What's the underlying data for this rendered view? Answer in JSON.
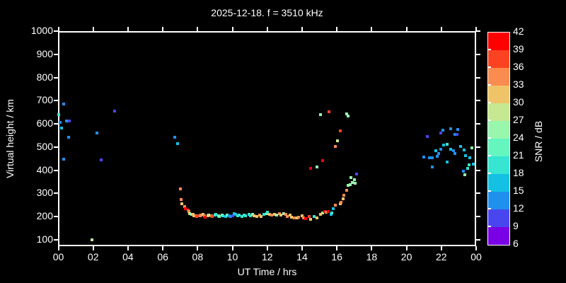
{
  "window": {
    "background": "#000000",
    "foreground": "#ffffff"
  },
  "chart_data": {
    "type": "scatter",
    "title": "2025-12-18. f = 3510 kHz",
    "xlabel": "UT Time / hrs",
    "ylabel": "Virtual height / km",
    "colorbar_label": "SNR / dB",
    "xlim_hours": [
      0,
      24
    ],
    "ylim_km": [
      73,
      1000
    ],
    "grid": false,
    "marker": "square",
    "x_tick_labels": [
      "00",
      "02",
      "04",
      "06",
      "08",
      "10",
      "12",
      "14",
      "16",
      "18",
      "20",
      "22",
      "00"
    ],
    "x_tick_hours": [
      0,
      2,
      4,
      6,
      8,
      10,
      12,
      14,
      16,
      18,
      20,
      22,
      24
    ],
    "y_tick_labels": [
      "1000",
      "900",
      "800",
      "700",
      "600",
      "500",
      "400",
      "300",
      "200",
      "100"
    ],
    "y_ticks_km": [
      1000,
      900,
      800,
      700,
      600,
      500,
      400,
      300,
      200,
      100
    ],
    "colorbar": {
      "min_db": 6,
      "max_db": 42,
      "step_db": 3,
      "tick_labels_top_to_bottom": [
        "42",
        "39",
        "36",
        "33",
        "30",
        "27",
        "24",
        "21",
        "18",
        "15",
        "12",
        "9",
        "6"
      ],
      "band_colors_bottom_to_top": [
        "#7A00E5",
        "#4A46EF",
        "#2090EF",
        "#14C1E3",
        "#36E5D2",
        "#65F5BF",
        "#98F6AD",
        "#C6E890",
        "#EFC469",
        "#FA8C50",
        "#FB4322",
        "#FF0000"
      ]
    },
    "points_t_h_snr": [
      [
        0.3,
        686,
        13
      ],
      [
        0.0,
        640,
        19
      ],
      [
        0.1,
        607,
        13
      ],
      [
        0.45,
        613,
        13
      ],
      [
        0.65,
        613,
        10
      ],
      [
        0.2,
        582,
        16
      ],
      [
        0.6,
        543,
        13
      ],
      [
        2.2,
        561,
        13
      ],
      [
        3.25,
        655,
        10
      ],
      [
        2.45,
        445,
        10
      ],
      [
        0.3,
        448,
        13
      ],
      [
        1.95,
        100,
        28
      ],
      [
        6.7,
        543,
        13
      ],
      [
        6.85,
        515,
        16
      ],
      [
        7.0,
        320,
        34
      ],
      [
        7.05,
        274,
        34
      ],
      [
        7.1,
        256,
        31
      ],
      [
        7.25,
        244,
        34
      ],
      [
        7.3,
        235,
        40
      ],
      [
        7.45,
        229,
        37
      ],
      [
        7.5,
        223,
        34
      ],
      [
        7.55,
        213,
        28
      ],
      [
        7.65,
        210,
        25
      ],
      [
        7.75,
        210,
        31
      ],
      [
        7.8,
        204,
        31
      ],
      [
        7.9,
        204,
        34
      ],
      [
        7.95,
        201,
        37
      ],
      [
        8.05,
        204,
        37
      ],
      [
        8.15,
        204,
        34
      ],
      [
        8.2,
        207,
        34
      ],
      [
        8.3,
        210,
        31
      ],
      [
        8.4,
        204,
        34
      ],
      [
        8.45,
        198,
        40
      ],
      [
        8.6,
        204,
        31
      ],
      [
        8.65,
        207,
        28
      ],
      [
        8.8,
        204,
        34
      ],
      [
        8.85,
        201,
        37
      ],
      [
        9.0,
        207,
        19
      ],
      [
        9.05,
        210,
        19
      ],
      [
        9.2,
        204,
        25
      ],
      [
        9.25,
        201,
        22
      ],
      [
        9.4,
        207,
        25
      ],
      [
        9.45,
        204,
        19
      ],
      [
        9.6,
        201,
        16
      ],
      [
        9.7,
        207,
        22
      ],
      [
        9.8,
        204,
        13
      ],
      [
        9.9,
        201,
        13
      ],
      [
        10.0,
        204,
        10
      ],
      [
        10.1,
        213,
        16
      ],
      [
        10.2,
        210,
        16
      ],
      [
        10.3,
        204,
        19
      ],
      [
        10.4,
        207,
        19
      ],
      [
        10.55,
        201,
        19
      ],
      [
        10.65,
        207,
        19
      ],
      [
        10.75,
        204,
        19
      ],
      [
        10.95,
        210,
        19
      ],
      [
        11.05,
        204,
        19
      ],
      [
        11.15,
        210,
        25
      ],
      [
        11.25,
        204,
        31
      ],
      [
        11.4,
        201,
        31
      ],
      [
        11.55,
        207,
        34
      ],
      [
        11.65,
        201,
        31
      ],
      [
        11.8,
        210,
        19
      ],
      [
        11.95,
        213,
        25
      ],
      [
        12.0,
        219,
        19
      ],
      [
        12.15,
        210,
        31
      ],
      [
        12.25,
        207,
        34
      ],
      [
        12.4,
        210,
        31
      ],
      [
        12.55,
        207,
        25
      ],
      [
        12.7,
        213,
        34
      ],
      [
        12.8,
        207,
        31
      ],
      [
        12.95,
        213,
        25
      ],
      [
        13.05,
        210,
        34
      ],
      [
        13.15,
        201,
        34
      ],
      [
        13.3,
        207,
        31
      ],
      [
        13.4,
        198,
        31
      ],
      [
        13.55,
        195,
        34
      ],
      [
        13.7,
        195,
        31
      ],
      [
        13.8,
        198,
        34
      ],
      [
        14.0,
        204,
        31
      ],
      [
        14.1,
        195,
        34
      ],
      [
        14.2,
        192,
        40
      ],
      [
        14.4,
        201,
        37
      ],
      [
        14.5,
        189,
        31
      ],
      [
        14.7,
        201,
        19
      ],
      [
        14.85,
        195,
        31
      ],
      [
        15.05,
        210,
        31
      ],
      [
        15.2,
        216,
        28
      ],
      [
        15.3,
        223,
        40
      ],
      [
        15.4,
        219,
        34
      ],
      [
        15.5,
        223,
        40
      ],
      [
        15.65,
        210,
        16
      ],
      [
        15.7,
        216,
        19
      ],
      [
        15.8,
        235,
        16
      ],
      [
        15.9,
        250,
        34
      ],
      [
        16.2,
        256,
        31
      ],
      [
        16.25,
        262,
        34
      ],
      [
        16.35,
        277,
        31
      ],
      [
        16.4,
        293,
        34
      ],
      [
        16.55,
        314,
        34
      ],
      [
        16.65,
        335,
        25
      ],
      [
        16.75,
        338,
        25
      ],
      [
        16.8,
        368,
        25
      ],
      [
        16.9,
        347,
        25
      ],
      [
        17.0,
        359,
        25
      ],
      [
        17.05,
        344,
        25
      ],
      [
        17.15,
        384,
        10
      ],
      [
        15.05,
        640,
        25
      ],
      [
        15.55,
        652,
        37
      ],
      [
        16.55,
        643,
        25
      ],
      [
        16.65,
        634,
        25
      ],
      [
        16.2,
        570,
        37
      ],
      [
        16.05,
        527,
        28
      ],
      [
        15.9,
        503,
        34
      ],
      [
        15.2,
        442,
        40
      ],
      [
        14.85,
        415,
        25
      ],
      [
        14.5,
        409,
        40
      ],
      [
        21.2,
        546,
        10
      ],
      [
        21.95,
        561,
        10
      ],
      [
        22.1,
        573,
        13
      ],
      [
        22.55,
        579,
        13
      ],
      [
        22.95,
        576,
        13
      ],
      [
        22.8,
        555,
        13
      ],
      [
        22.9,
        555,
        10
      ],
      [
        22.15,
        509,
        16
      ],
      [
        22.35,
        512,
        19
      ],
      [
        21.95,
        491,
        13
      ],
      [
        21.7,
        485,
        16
      ],
      [
        21.85,
        473,
        13
      ],
      [
        22.55,
        491,
        16
      ],
      [
        22.7,
        485,
        13
      ],
      [
        22.8,
        473,
        13
      ],
      [
        23.1,
        503,
        16
      ],
      [
        23.3,
        488,
        16
      ],
      [
        23.75,
        497,
        25
      ],
      [
        21.0,
        457,
        13
      ],
      [
        21.3,
        454,
        13
      ],
      [
        21.5,
        454,
        13
      ],
      [
        21.75,
        460,
        13
      ],
      [
        23.4,
        463,
        16
      ],
      [
        23.65,
        454,
        16
      ],
      [
        22.35,
        436,
        16
      ],
      [
        21.5,
        415,
        13
      ],
      [
        23.25,
        396,
        13
      ],
      [
        23.5,
        408,
        19
      ],
      [
        23.6,
        424,
        19
      ],
      [
        23.85,
        427,
        16
      ],
      [
        23.35,
        381,
        25
      ]
    ]
  }
}
